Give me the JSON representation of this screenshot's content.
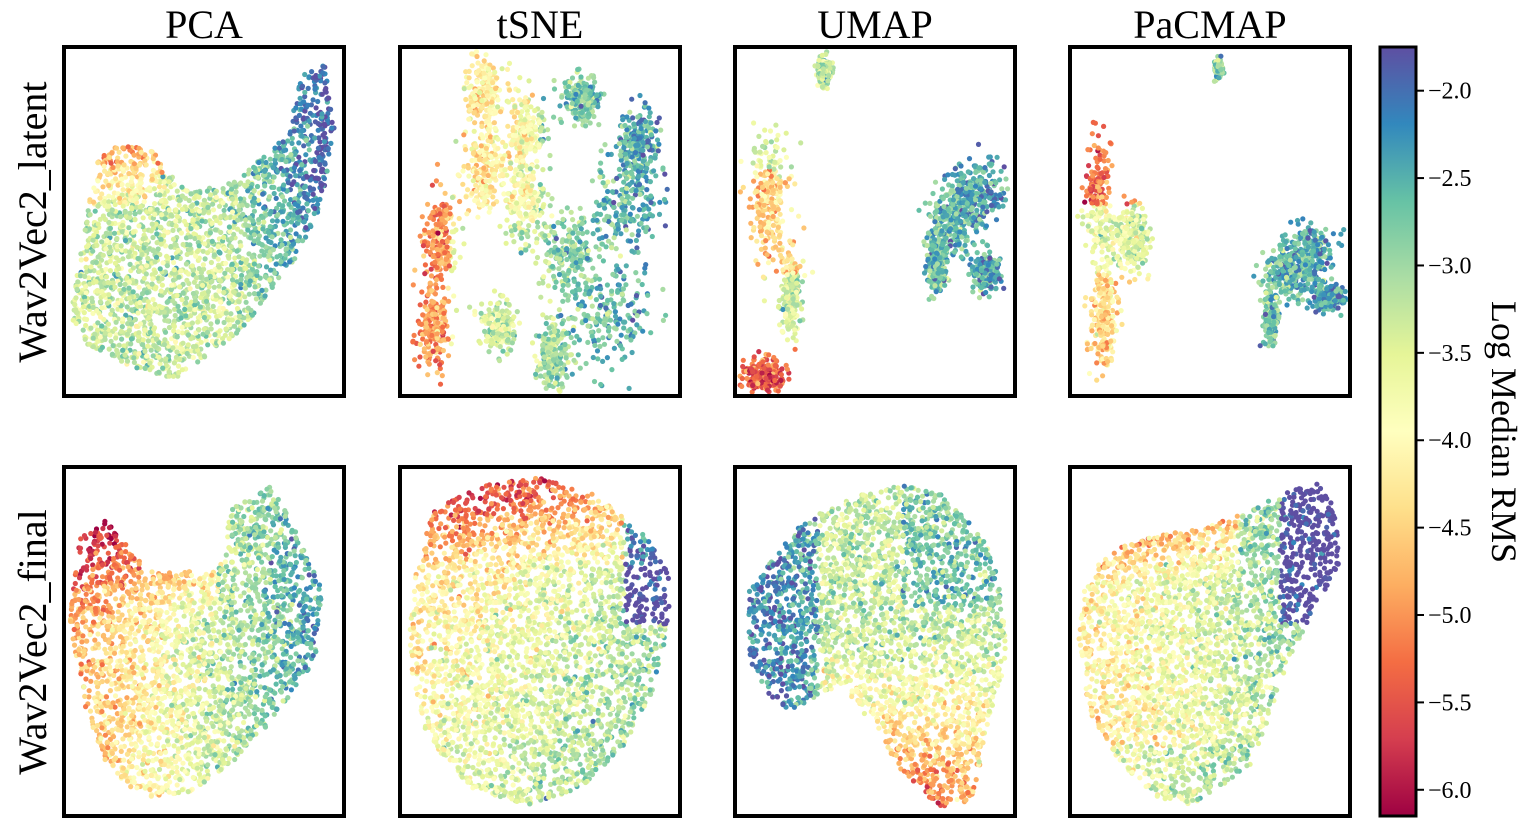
{
  "chart_data": {
    "type": "scatter",
    "columns": [
      "PCA",
      "tSNE",
      "UMAP",
      "PaCMAP"
    ],
    "rows": [
      "Wav2Vec2_latent",
      "Wav2Vec2_final"
    ],
    "colorbar": {
      "label": "Log Median RMS",
      "range": [
        -6.15,
        -1.75
      ],
      "ticks": [
        -2.0,
        -2.5,
        -3.0,
        -3.5,
        -4.0,
        -4.5,
        -5.0,
        -5.5,
        -6.0
      ],
      "tick_labels": [
        "−2.0",
        "−2.5",
        "−3.0",
        "−3.5",
        "−4.0",
        "−4.5",
        "−5.0",
        "−5.5",
        "−6.0"
      ],
      "colormap": "Spectral",
      "stops": [
        "#9e0142",
        "#d53e4f",
        "#f46d43",
        "#fdae61",
        "#fee08b",
        "#ffffbf",
        "#e6f598",
        "#abdda4",
        "#66c2a5",
        "#3288bd",
        "#5e4fa2"
      ]
    },
    "axes": {
      "ticks": false,
      "frame": true,
      "grid": false
    }
  }
}
